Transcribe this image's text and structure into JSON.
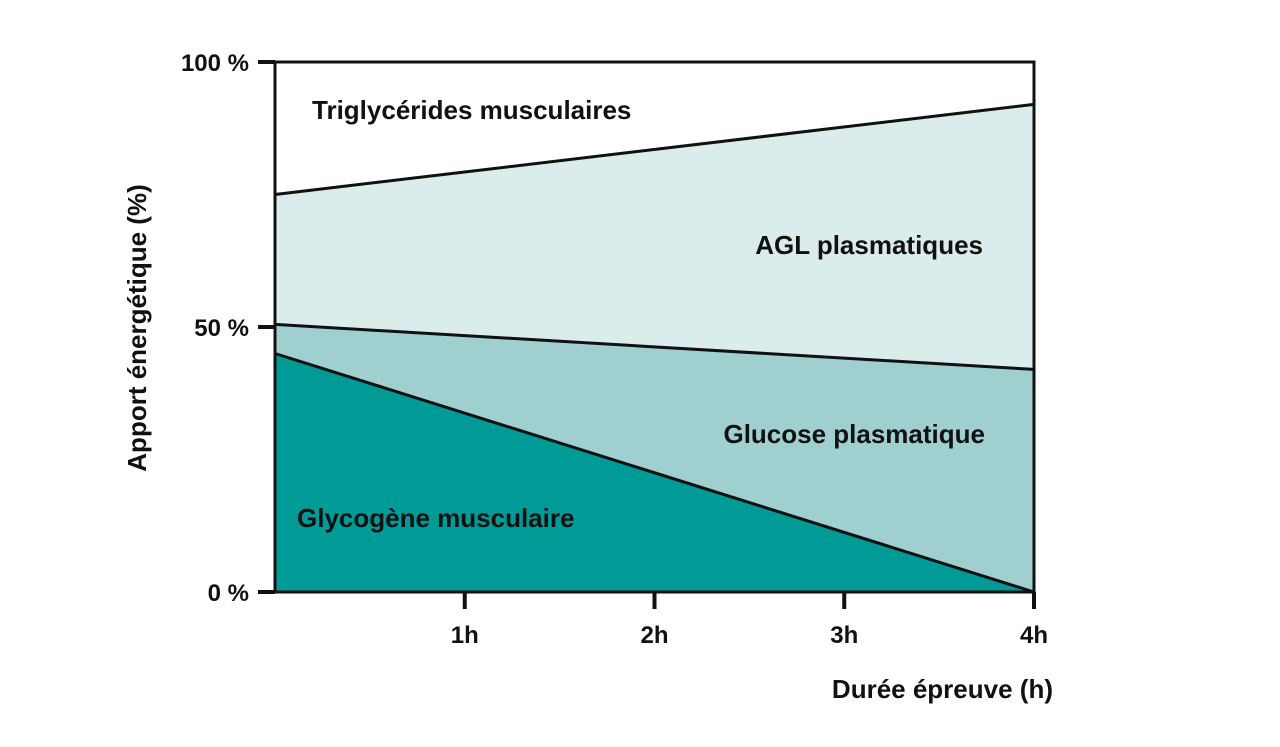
{
  "chart_data": {
    "type": "area",
    "stacked": true,
    "x": [
      0,
      4
    ],
    "xlim": [
      0,
      4
    ],
    "ylim": [
      0,
      100
    ],
    "xticks": [
      1,
      2,
      3,
      4
    ],
    "xtick_labels": [
      "1h",
      "2h",
      "3h",
      "4h"
    ],
    "yticks": [
      0,
      50,
      100
    ],
    "ytick_labels": [
      "0 %",
      "50 %",
      "100 %"
    ],
    "xlabel": "Durée épreuve (h)",
    "ylabel": "Apport énergétique (%)",
    "grid": false,
    "series": [
      {
        "name": "Glycogène musculaire",
        "values": [
          45,
          0
        ],
        "color": "#009b96"
      },
      {
        "name": "Glucose plasmatique",
        "values": [
          5.5,
          42
        ],
        "color": "#a0cfd0"
      },
      {
        "name": "AGL plasmatiques",
        "values": [
          24.5,
          50
        ],
        "color": "#dbecec"
      },
      {
        "name": "Triglycérides musculaires",
        "values": [
          25,
          8
        ],
        "color": "#ffffff"
      }
    ]
  }
}
